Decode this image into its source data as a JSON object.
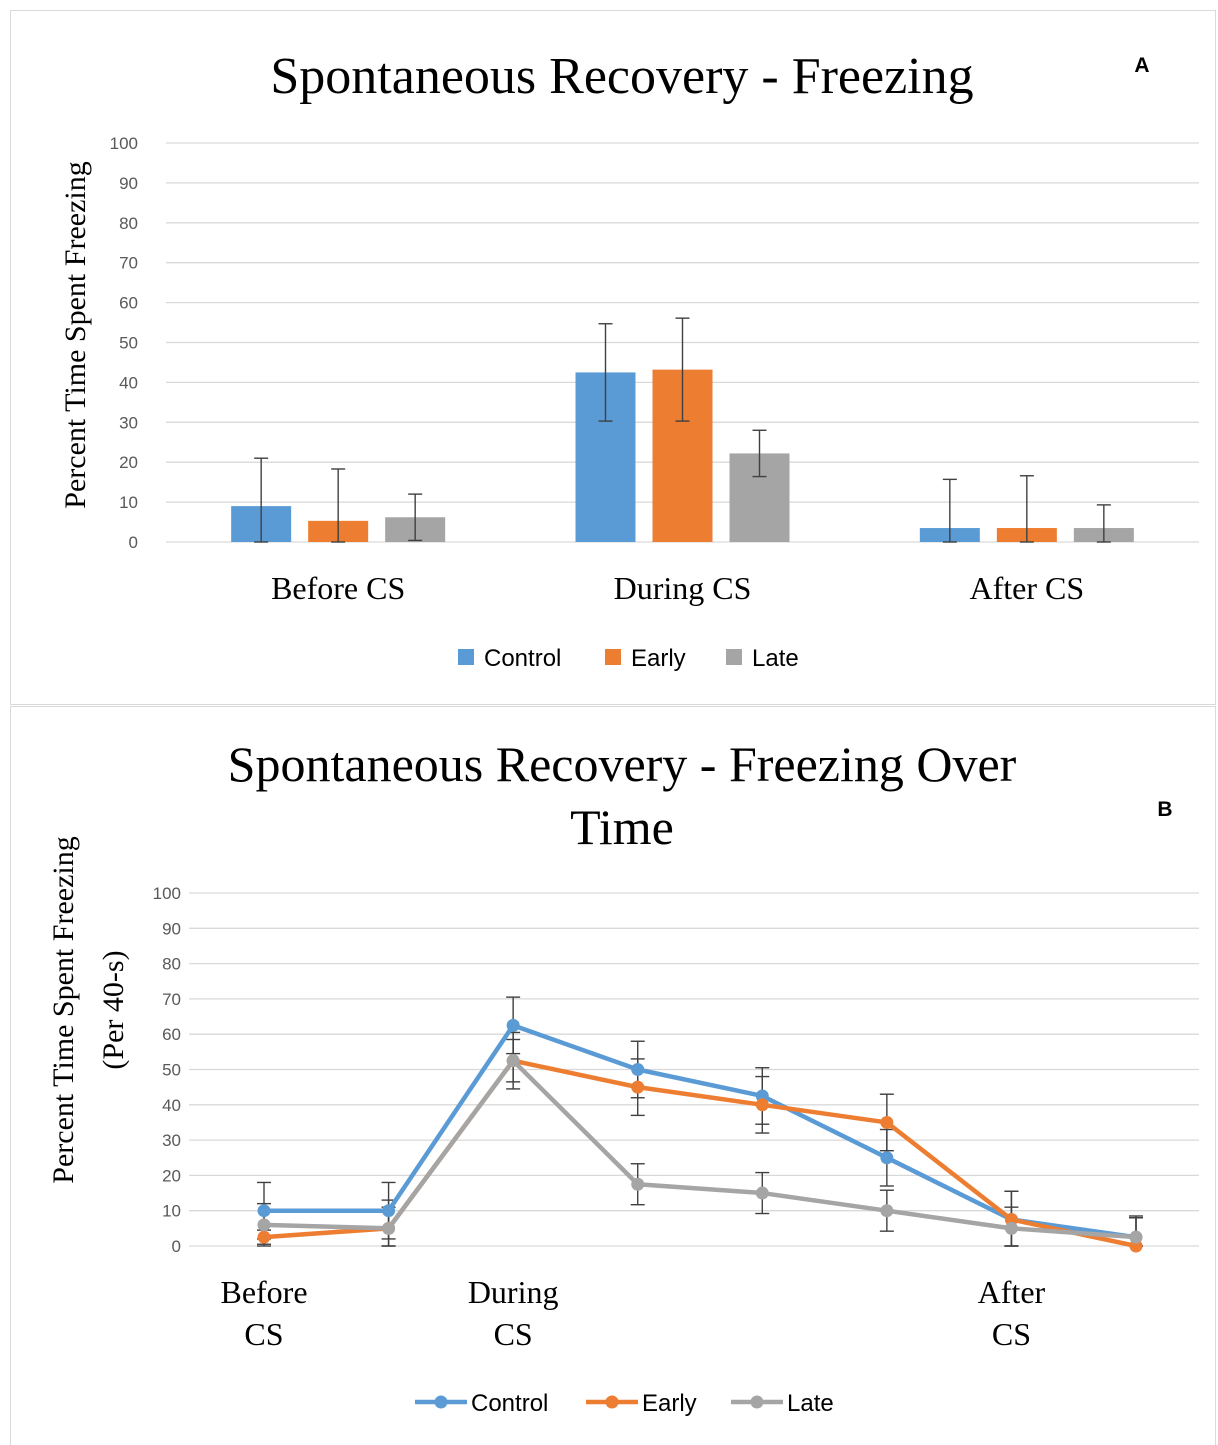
{
  "chart_data": [
    {
      "type": "bar",
      "title": "Spontaneous Recovery - Freezing",
      "panel_label": "A",
      "ylabel": "Percent Time Spent Freezing",
      "xlabel": "",
      "ylim": [
        0,
        100
      ],
      "yticks": [
        0,
        10,
        20,
        30,
        40,
        50,
        60,
        70,
        80,
        90,
        100
      ],
      "grid": true,
      "legend_position": "bottom",
      "categories": [
        "Before CS",
        "During CS",
        "After CS"
      ],
      "series": [
        {
          "name": "Control",
          "color": "#5b9bd5",
          "values": [
            9,
            42.5,
            3.5
          ],
          "error": [
            12,
            12.2,
            12.2
          ]
        },
        {
          "name": "Early",
          "color": "#ed7d31",
          "values": [
            5.3,
            43.2,
            3.5
          ],
          "error": [
            13,
            12.9,
            13.1
          ]
        },
        {
          "name": "Late",
          "color": "#a5a5a5",
          "values": [
            6.2,
            22.2,
            3.5
          ],
          "error": [
            5.8,
            5.8,
            5.8
          ]
        }
      ]
    },
    {
      "type": "line",
      "title_lines": [
        "Spontaneous Recovery - Freezing Over",
        "Time"
      ],
      "panel_label": "B",
      "ylabel_lines": [
        "Percent Time Spent Freezing",
        "(Per 40-s)"
      ],
      "xlabel": "",
      "ylim": [
        0,
        100
      ],
      "yticks": [
        0,
        10,
        20,
        30,
        40,
        50,
        60,
        70,
        80,
        90,
        100
      ],
      "grid": true,
      "legend_position": "bottom",
      "x": [
        1,
        2,
        3,
        4,
        5,
        6,
        7,
        8
      ],
      "x_annotations": [
        {
          "x": 1,
          "lines": [
            "Before",
            "CS"
          ]
        },
        {
          "x": 3,
          "lines": [
            "During",
            "CS"
          ]
        },
        {
          "x": 7,
          "lines": [
            "After",
            "CS"
          ]
        }
      ],
      "series": [
        {
          "name": "Control",
          "color": "#5b9bd5",
          "values": [
            10,
            10,
            62.5,
            50,
            42.5,
            25,
            7.5,
            2.5
          ],
          "error": [
            8,
            8,
            8,
            8,
            8,
            8,
            8,
            5.5
          ]
        },
        {
          "name": "Early",
          "color": "#ed7d31",
          "values": [
            2.5,
            5,
            52.5,
            45,
            40,
            35,
            7.5,
            0
          ],
          "error": [
            2,
            8,
            8,
            8,
            8,
            8,
            8,
            8
          ]
        },
        {
          "name": "Late",
          "color": "#a5a5a5",
          "values": [
            6,
            5,
            52.5,
            17.5,
            15,
            10,
            5,
            2.5
          ],
          "error": [
            6,
            6,
            6,
            5.8,
            5.8,
            5.8,
            6,
            6
          ]
        }
      ]
    }
  ]
}
